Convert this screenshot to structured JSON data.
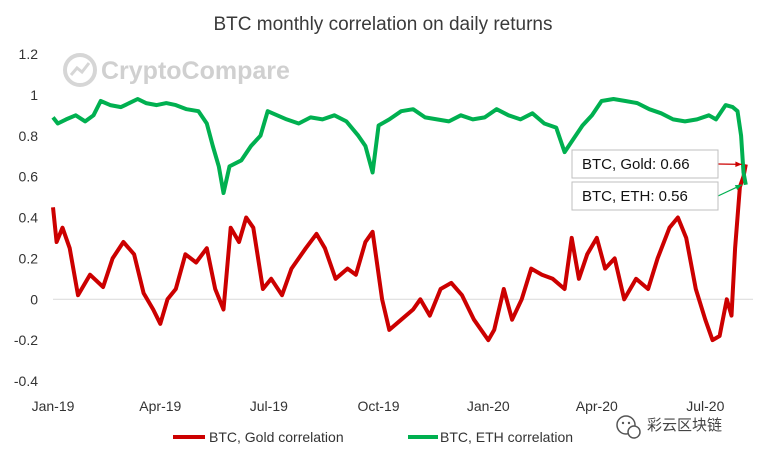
{
  "chart_data": {
    "type": "line",
    "title": "BTC monthly correlation on daily returns",
    "ylim": [
      -0.4,
      1.2
    ],
    "yticks": [
      -0.4,
      -0.2,
      0,
      0.2,
      0.4,
      0.6,
      0.8,
      1,
      1.2
    ],
    "ytick_labels": [
      "-0.4",
      "-0.2",
      "0",
      "0.2",
      "0.4",
      "0.6",
      "0.8",
      "1",
      "1.2"
    ],
    "x_tick_labels": [
      "Jan-19",
      "Apr-19",
      "Jul-19",
      "Oct-19",
      "Jan-20",
      "Apr-20",
      "Jul-20"
    ],
    "xlim": [
      "2019-01-01",
      "2020-08-10"
    ],
    "grid": false,
    "legend": "bottom",
    "series": [
      {
        "name": "BTC, Gold correlation",
        "color": "#cc0000",
        "points": [
          [
            "2019-01-01",
            0.45
          ],
          [
            "2019-01-04",
            0.28
          ],
          [
            "2019-01-09",
            0.35
          ],
          [
            "2019-01-15",
            0.25
          ],
          [
            "2019-01-22",
            0.02
          ],
          [
            "2019-02-01",
            0.12
          ],
          [
            "2019-02-12",
            0.06
          ],
          [
            "2019-02-20",
            0.2
          ],
          [
            "2019-03-01",
            0.28
          ],
          [
            "2019-03-10",
            0.22
          ],
          [
            "2019-03-18",
            0.03
          ],
          [
            "2019-03-26",
            -0.05
          ],
          [
            "2019-04-01",
            -0.12
          ],
          [
            "2019-04-07",
            0.0
          ],
          [
            "2019-04-14",
            0.05
          ],
          [
            "2019-04-22",
            0.22
          ],
          [
            "2019-05-01",
            0.18
          ],
          [
            "2019-05-10",
            0.25
          ],
          [
            "2019-05-17",
            0.05
          ],
          [
            "2019-05-24",
            -0.05
          ],
          [
            "2019-05-30",
            0.35
          ],
          [
            "2019-06-06",
            0.28
          ],
          [
            "2019-06-12",
            0.4
          ],
          [
            "2019-06-18",
            0.35
          ],
          [
            "2019-06-26",
            0.05
          ],
          [
            "2019-07-03",
            0.1
          ],
          [
            "2019-07-12",
            0.02
          ],
          [
            "2019-07-20",
            0.15
          ],
          [
            "2019-08-01",
            0.25
          ],
          [
            "2019-08-10",
            0.32
          ],
          [
            "2019-08-17",
            0.25
          ],
          [
            "2019-08-26",
            0.1
          ],
          [
            "2019-09-05",
            0.15
          ],
          [
            "2019-09-12",
            0.12
          ],
          [
            "2019-09-20",
            0.28
          ],
          [
            "2019-09-26",
            0.33
          ],
          [
            "2019-10-04",
            0.0
          ],
          [
            "2019-10-10",
            -0.15
          ],
          [
            "2019-10-20",
            -0.1
          ],
          [
            "2019-10-30",
            -0.05
          ],
          [
            "2019-11-05",
            0.0
          ],
          [
            "2019-11-13",
            -0.08
          ],
          [
            "2019-11-22",
            0.05
          ],
          [
            "2019-12-01",
            0.08
          ],
          [
            "2019-12-10",
            0.02
          ],
          [
            "2019-12-20",
            -0.1
          ],
          [
            "2020-01-01",
            -0.2
          ],
          [
            "2020-01-06",
            -0.15
          ],
          [
            "2020-01-14",
            0.05
          ],
          [
            "2020-01-21",
            -0.1
          ],
          [
            "2020-01-29",
            0.0
          ],
          [
            "2020-02-06",
            0.15
          ],
          [
            "2020-02-15",
            0.12
          ],
          [
            "2020-02-24",
            0.1
          ],
          [
            "2020-03-05",
            0.05
          ],
          [
            "2020-03-11",
            0.3
          ],
          [
            "2020-03-17",
            0.1
          ],
          [
            "2020-03-24",
            0.22
          ],
          [
            "2020-04-01",
            0.3
          ],
          [
            "2020-04-08",
            0.15
          ],
          [
            "2020-04-16",
            0.2
          ],
          [
            "2020-04-24",
            0.0
          ],
          [
            "2020-05-04",
            0.1
          ],
          [
            "2020-05-14",
            0.05
          ],
          [
            "2020-05-22",
            0.2
          ],
          [
            "2020-06-01",
            0.35
          ],
          [
            "2020-06-08",
            0.4
          ],
          [
            "2020-06-15",
            0.3
          ],
          [
            "2020-06-23",
            0.05
          ],
          [
            "2020-07-01",
            -0.1
          ],
          [
            "2020-07-07",
            -0.2
          ],
          [
            "2020-07-13",
            -0.18
          ],
          [
            "2020-07-19",
            0.0
          ],
          [
            "2020-07-23",
            -0.08
          ],
          [
            "2020-07-26",
            0.25
          ],
          [
            "2020-07-30",
            0.55
          ],
          [
            "2020-08-02",
            0.6
          ],
          [
            "2020-08-04",
            0.66
          ]
        ]
      },
      {
        "name": "BTC, ETH correlation",
        "color": "#00b050",
        "points": [
          [
            "2019-01-01",
            0.89
          ],
          [
            "2019-01-05",
            0.86
          ],
          [
            "2019-01-12",
            0.88
          ],
          [
            "2019-01-20",
            0.9
          ],
          [
            "2019-01-28",
            0.87
          ],
          [
            "2019-02-04",
            0.9
          ],
          [
            "2019-02-10",
            0.97
          ],
          [
            "2019-02-18",
            0.95
          ],
          [
            "2019-02-27",
            0.94
          ],
          [
            "2019-03-06",
            0.96
          ],
          [
            "2019-03-13",
            0.98
          ],
          [
            "2019-03-20",
            0.96
          ],
          [
            "2019-03-29",
            0.95
          ],
          [
            "2019-04-06",
            0.96
          ],
          [
            "2019-04-14",
            0.95
          ],
          [
            "2019-04-23",
            0.93
          ],
          [
            "2019-05-03",
            0.92
          ],
          [
            "2019-05-10",
            0.86
          ],
          [
            "2019-05-15",
            0.75
          ],
          [
            "2019-05-20",
            0.65
          ],
          [
            "2019-05-24",
            0.52
          ],
          [
            "2019-05-29",
            0.65
          ],
          [
            "2019-06-08",
            0.68
          ],
          [
            "2019-06-16",
            0.75
          ],
          [
            "2019-06-24",
            0.8
          ],
          [
            "2019-06-30",
            0.92
          ],
          [
            "2019-07-08",
            0.9
          ],
          [
            "2019-07-16",
            0.88
          ],
          [
            "2019-07-26",
            0.86
          ],
          [
            "2019-08-05",
            0.89
          ],
          [
            "2019-08-15",
            0.88
          ],
          [
            "2019-08-25",
            0.9
          ],
          [
            "2019-09-04",
            0.87
          ],
          [
            "2019-09-14",
            0.8
          ],
          [
            "2019-09-20",
            0.75
          ],
          [
            "2019-09-26",
            0.62
          ],
          [
            "2019-10-01",
            0.85
          ],
          [
            "2019-10-10",
            0.88
          ],
          [
            "2019-10-20",
            0.92
          ],
          [
            "2019-10-30",
            0.93
          ],
          [
            "2019-11-09",
            0.89
          ],
          [
            "2019-11-19",
            0.88
          ],
          [
            "2019-11-29",
            0.87
          ],
          [
            "2019-12-09",
            0.9
          ],
          [
            "2019-12-19",
            0.88
          ],
          [
            "2019-12-29",
            0.89
          ],
          [
            "2020-01-08",
            0.93
          ],
          [
            "2020-01-18",
            0.9
          ],
          [
            "2020-01-28",
            0.88
          ],
          [
            "2020-02-07",
            0.91
          ],
          [
            "2020-02-17",
            0.86
          ],
          [
            "2020-02-27",
            0.84
          ],
          [
            "2020-03-05",
            0.72
          ],
          [
            "2020-03-12",
            0.78
          ],
          [
            "2020-03-20",
            0.85
          ],
          [
            "2020-03-28",
            0.9
          ],
          [
            "2020-04-05",
            0.97
          ],
          [
            "2020-04-15",
            0.98
          ],
          [
            "2020-04-25",
            0.97
          ],
          [
            "2020-05-05",
            0.96
          ],
          [
            "2020-05-15",
            0.93
          ],
          [
            "2020-05-25",
            0.91
          ],
          [
            "2020-06-04",
            0.88
          ],
          [
            "2020-06-14",
            0.87
          ],
          [
            "2020-06-24",
            0.88
          ],
          [
            "2020-07-04",
            0.9
          ],
          [
            "2020-07-10",
            0.88
          ],
          [
            "2020-07-18",
            0.95
          ],
          [
            "2020-07-24",
            0.94
          ],
          [
            "2020-07-28",
            0.92
          ],
          [
            "2020-07-31",
            0.8
          ],
          [
            "2020-08-02",
            0.62
          ],
          [
            "2020-08-04",
            0.56
          ]
        ]
      }
    ],
    "annotations": [
      {
        "text": "BTC, Gold: 0.66",
        "series": 0
      },
      {
        "text": "BTC, ETH: 0.56",
        "series": 1
      }
    ]
  },
  "watermark": {
    "text": "CryptoCompare"
  },
  "badge": {
    "text": "彩云区块链"
  }
}
